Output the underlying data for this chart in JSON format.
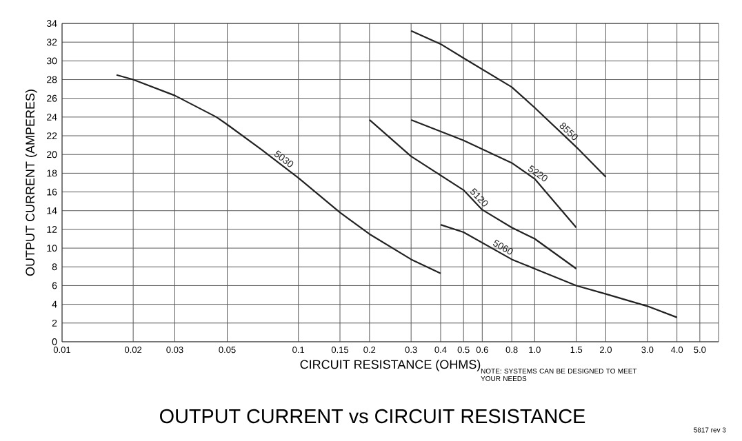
{
  "chart_data": {
    "type": "line",
    "title": "OUTPUT CURRENT vs CIRCUIT RESISTANCE",
    "xlabel": "CIRCUIT RESISTANCE (OHMS)",
    "ylabel": "OUTPUT CURRENT (AMPERES)",
    "log": "x",
    "grid": true,
    "line_style": "solid",
    "xlim": [
      0.01,
      6
    ],
    "xticks": [
      0.01,
      0.02,
      0.03,
      0.05,
      0.1,
      0.15,
      0.2,
      0.3,
      0.4,
      0.5,
      0.6,
      0.8,
      {
        "value": 1,
        "label": "1.0"
      },
      1.5,
      {
        "value": 2,
        "label": "2.0"
      },
      {
        "value": 3,
        "label": "3.0"
      },
      {
        "value": 4,
        "label": "4.0"
      },
      {
        "value": 5,
        "label": "5.0"
      }
    ],
    "ylim": [
      0,
      34
    ],
    "yticks": [
      0,
      2,
      4,
      6,
      8,
      10,
      12,
      14,
      16,
      18,
      20,
      22,
      24,
      26,
      28,
      30,
      32,
      34
    ],
    "series": [
      {
        "name": "5030",
        "color": "#222222",
        "x": [
          0.017,
          0.02,
          0.03,
          0.045,
          0.05,
          0.07,
          0.1,
          0.15,
          0.2,
          0.3,
          0.4
        ],
        "values": [
          28.5,
          28,
          26.3,
          24,
          23.2,
          20.5,
          17.5,
          13.8,
          11.5,
          8.8,
          7.3
        ]
      },
      {
        "name": "8550",
        "color": "#222222",
        "x": [
          0.3,
          0.4,
          0.5,
          0.8,
          1,
          1.5,
          2
        ],
        "values": [
          33.2,
          31.8,
          30.3,
          27.2,
          25,
          20.8,
          17.6
        ]
      },
      {
        "name": "5220",
        "color": "#222222",
        "x": [
          0.3,
          0.5,
          0.8,
          1,
          1.5
        ],
        "values": [
          23.7,
          21.5,
          19.1,
          17.4,
          12.2
        ]
      },
      {
        "name": "5120",
        "color": "#222222",
        "x": [
          0.2,
          0.3,
          0.5,
          0.6,
          0.8,
          1,
          1.5
        ],
        "values": [
          23.7,
          19.8,
          16.2,
          14.1,
          12.2,
          11,
          7.8
        ]
      },
      {
        "name": "5060",
        "color": "#222222",
        "x": [
          0.4,
          0.5,
          0.8,
          1,
          1.5,
          2,
          3,
          4
        ],
        "values": [
          12.5,
          11.7,
          8.8,
          7.8,
          6.0,
          5.1,
          3.8,
          2.6
        ]
      }
    ],
    "annotations": [
      "NOTE: SYSTEMS CAN BE DESIGNED TO MEET YOUR NEEDS",
      "5817 rev 3"
    ]
  }
}
